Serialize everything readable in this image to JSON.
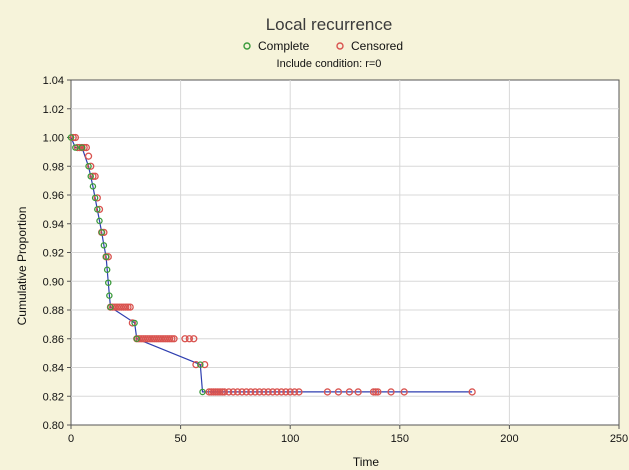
{
  "chart_data": {
    "type": "line",
    "title": "Local recurrence",
    "subtitle": "Include condition: r=0",
    "xlabel": "Time",
    "ylabel": "Cumulative Proportion",
    "xlim": [
      0,
      250
    ],
    "ylim": [
      0.8,
      1.04
    ],
    "xticks": [
      "0",
      "50",
      "100",
      "150",
      "200",
      "250"
    ],
    "yticks": [
      "0.80",
      "0.82",
      "0.84",
      "0.86",
      "0.88",
      "0.90",
      "0.92",
      "0.94",
      "0.96",
      "0.98",
      "1.00",
      "1.02",
      "1.04"
    ],
    "grid": true,
    "legend": {
      "position": "top-center",
      "entries": [
        {
          "label": "Complete",
          "marker_color": "#3a9a3a"
        },
        {
          "label": "Censored",
          "marker_color": "#d9534f"
        }
      ]
    },
    "colors": {
      "line": "#2f3fb0",
      "complete": "#3a9a3a",
      "censored": "#d9534f",
      "background": "#f6f3da",
      "plot_bg": "#ffffff",
      "grid": "#d8d8d8"
    },
    "series": [
      {
        "name": "Complete",
        "x": [
          0,
          2,
          5,
          8,
          9,
          10,
          11,
          12,
          13,
          14,
          15,
          16,
          16.5,
          17,
          17.5,
          18,
          29,
          30,
          59,
          60
        ],
        "y": [
          1.0,
          0.993,
          0.993,
          0.98,
          0.973,
          0.966,
          0.958,
          0.95,
          0.942,
          0.934,
          0.925,
          0.917,
          0.908,
          0.899,
          0.89,
          0.882,
          0.871,
          0.86,
          0.842,
          0.823
        ]
      },
      {
        "name": "Censored",
        "x": [
          1,
          2,
          3,
          4,
          5,
          6,
          7,
          8,
          9,
          10,
          11,
          12,
          13,
          14,
          15,
          16,
          17,
          18,
          19,
          20,
          21,
          22,
          23,
          24,
          25,
          26,
          27,
          28,
          30,
          31,
          32,
          33,
          34,
          35,
          36,
          37,
          38,
          39,
          40,
          41,
          42,
          43,
          44,
          45,
          46,
          47,
          52,
          54,
          56,
          57,
          61,
          63,
          64,
          65,
          66,
          67,
          68,
          69,
          70,
          72,
          74,
          76,
          78,
          80,
          82,
          84,
          86,
          88,
          90,
          92,
          94,
          96,
          98,
          100,
          102,
          104,
          117,
          122,
          127,
          131,
          138,
          139,
          140,
          146,
          152,
          183
        ],
        "y": [
          1.0,
          1.0,
          0.993,
          0.993,
          0.993,
          0.993,
          0.993,
          0.987,
          0.98,
          0.973,
          0.973,
          0.958,
          0.95,
          0.934,
          0.934,
          0.917,
          0.917,
          0.882,
          0.882,
          0.882,
          0.882,
          0.882,
          0.882,
          0.882,
          0.882,
          0.882,
          0.882,
          0.871,
          0.86,
          0.86,
          0.86,
          0.86,
          0.86,
          0.86,
          0.86,
          0.86,
          0.86,
          0.86,
          0.86,
          0.86,
          0.86,
          0.86,
          0.86,
          0.86,
          0.86,
          0.86,
          0.86,
          0.86,
          0.86,
          0.842,
          0.842,
          0.823,
          0.823,
          0.823,
          0.823,
          0.823,
          0.823,
          0.823,
          0.823,
          0.823,
          0.823,
          0.823,
          0.823,
          0.823,
          0.823,
          0.823,
          0.823,
          0.823,
          0.823,
          0.823,
          0.823,
          0.823,
          0.823,
          0.823,
          0.823,
          0.823,
          0.823,
          0.823,
          0.823,
          0.823,
          0.823,
          0.823,
          0.823,
          0.823,
          0.823,
          0.823
        ]
      }
    ]
  }
}
